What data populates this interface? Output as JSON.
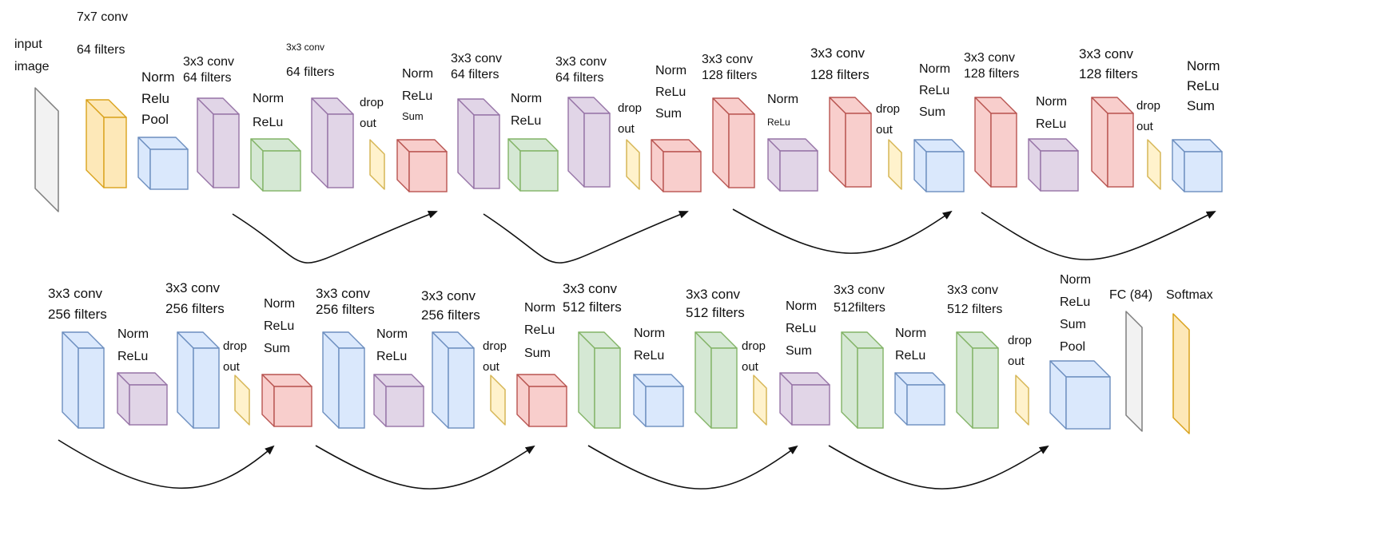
{
  "colors": {
    "gray": {
      "fill": "#f2f2f2",
      "stroke": "#7f7f7f"
    },
    "orange": {
      "fill": "#fde8b8",
      "stroke": "#d9a21c"
    },
    "blue": {
      "fill": "#dae8fc",
      "stroke": "#6c8ebf"
    },
    "purple": {
      "fill": "#e1d5e7",
      "stroke": "#9673a6"
    },
    "green": {
      "fill": "#d5e8d4",
      "stroke": "#82b366"
    },
    "yellow": {
      "fill": "#fff2cc",
      "stroke": "#d6b656"
    },
    "red": {
      "fill": "#f8cecc",
      "stroke": "#b85450"
    }
  },
  "blocks": [
    {
      "kind": "plate",
      "color": "gray"
    },
    {
      "kind": "box",
      "color": "orange"
    },
    {
      "kind": "box",
      "color": "blue"
    },
    {
      "kind": "box",
      "color": "purple"
    },
    {
      "kind": "box",
      "color": "green"
    },
    {
      "kind": "box",
      "color": "purple"
    },
    {
      "kind": "plate",
      "color": "yellow"
    },
    {
      "kind": "box",
      "color": "red"
    },
    {
      "kind": "box",
      "color": "purple"
    },
    {
      "kind": "box",
      "color": "green"
    },
    {
      "kind": "box",
      "color": "purple"
    },
    {
      "kind": "plate",
      "color": "yellow"
    },
    {
      "kind": "box",
      "color": "red"
    },
    {
      "kind": "box",
      "color": "red"
    },
    {
      "kind": "box",
      "color": "purple"
    },
    {
      "kind": "box",
      "color": "red"
    },
    {
      "kind": "plate",
      "color": "yellow"
    },
    {
      "kind": "box",
      "color": "blue"
    },
    {
      "kind": "box",
      "color": "red"
    },
    {
      "kind": "box",
      "color": "purple"
    },
    {
      "kind": "box",
      "color": "red"
    },
    {
      "kind": "plate",
      "color": "yellow"
    },
    {
      "kind": "box",
      "color": "blue"
    },
    {
      "kind": "box",
      "color": "blue"
    },
    {
      "kind": "box",
      "color": "purple"
    },
    {
      "kind": "box",
      "color": "blue"
    },
    {
      "kind": "plate",
      "color": "yellow"
    },
    {
      "kind": "box",
      "color": "red"
    },
    {
      "kind": "box",
      "color": "blue"
    },
    {
      "kind": "box",
      "color": "purple"
    },
    {
      "kind": "box",
      "color": "blue"
    },
    {
      "kind": "plate",
      "color": "yellow"
    },
    {
      "kind": "box",
      "color": "red"
    },
    {
      "kind": "box",
      "color": "green"
    },
    {
      "kind": "box",
      "color": "blue"
    },
    {
      "kind": "box",
      "color": "green"
    },
    {
      "kind": "plate",
      "color": "yellow"
    },
    {
      "kind": "box",
      "color": "purple"
    },
    {
      "kind": "box",
      "color": "green"
    },
    {
      "kind": "box",
      "color": "blue"
    },
    {
      "kind": "box",
      "color": "green"
    },
    {
      "kind": "plate",
      "color": "yellow"
    },
    {
      "kind": "box",
      "color": "blue"
    },
    {
      "kind": "plate",
      "color": "gray"
    },
    {
      "kind": "plate",
      "color": "orange"
    }
  ],
  "labels": [
    {
      "lines": [
        "input",
        "image"
      ]
    },
    {
      "lines": [
        "7x7 conv"
      ]
    },
    {
      "lines": [
        "64 filters"
      ]
    },
    {
      "lines": [
        "Norm",
        "Relu"
      ]
    },
    {
      "lines": [
        "Pool"
      ]
    },
    {
      "lines": [
        "3x3 conv",
        "64 filters"
      ]
    },
    {
      "lines": [
        "3x3 conv"
      ]
    },
    {
      "lines": [
        "64 filters"
      ]
    },
    {
      "lines": [
        "Norm",
        "ReLu"
      ]
    },
    {
      "lines": [
        "drop",
        "out"
      ]
    },
    {
      "lines": [
        "Norm",
        "ReLu"
      ]
    },
    {
      "lines": [
        "Sum"
      ]
    },
    {
      "lines": [
        "3x3 conv",
        "64 filters"
      ]
    },
    {
      "lines": [
        "Norm",
        "ReLu"
      ]
    },
    {
      "lines": [
        "3x3 conv",
        "64 filters"
      ]
    },
    {
      "lines": [
        "drop",
        "out"
      ]
    },
    {
      "lines": [
        "Norm",
        "ReLu",
        "Sum"
      ]
    },
    {
      "lines": [
        "3x3 conv",
        "128 filters"
      ]
    },
    {
      "lines": [
        "Norm"
      ]
    },
    {
      "lines": [
        "ReLu"
      ]
    },
    {
      "lines": [
        "3x3 conv",
        "128 filters"
      ]
    },
    {
      "lines": [
        "drop",
        "out"
      ]
    },
    {
      "lines": [
        "Norm",
        "ReLu",
        "Sum"
      ]
    },
    {
      "lines": [
        "3x3 conv",
        "128 filters"
      ]
    },
    {
      "lines": [
        "Norm",
        "ReLu"
      ]
    },
    {
      "lines": [
        "3x3 conv",
        "128 filters"
      ]
    },
    {
      "lines": [
        "drop",
        "out"
      ]
    },
    {
      "lines": [
        "Norm",
        "ReLu",
        "Sum"
      ]
    },
    {
      "lines": [
        "3x3 conv",
        "256 filters"
      ]
    },
    {
      "lines": [
        "Norm",
        "ReLu"
      ]
    },
    {
      "lines": [
        "3x3 conv",
        "256 filters"
      ]
    },
    {
      "lines": [
        "drop",
        "out"
      ]
    },
    {
      "lines": [
        "Norm",
        "ReLu",
        "Sum"
      ]
    },
    {
      "lines": [
        "3x3 conv",
        "256 filters"
      ]
    },
    {
      "lines": [
        "Norm",
        "ReLu"
      ]
    },
    {
      "lines": [
        "3x3 conv",
        "256 filters"
      ]
    },
    {
      "lines": [
        "drop",
        "out"
      ]
    },
    {
      "lines": [
        "Norm"
      ]
    },
    {
      "lines": [
        "ReLu",
        "Sum"
      ]
    },
    {
      "lines": [
        "3x3 conv",
        "512 filters"
      ]
    },
    {
      "lines": [
        "Norm",
        "ReLu"
      ]
    },
    {
      "lines": [
        "3x3 conv",
        "512 filters"
      ]
    },
    {
      "lines": [
        "drop",
        "out"
      ]
    },
    {
      "lines": [
        "Norm",
        "ReLu",
        "Sum"
      ]
    },
    {
      "lines": [
        "3x3 conv",
        "512filters"
      ]
    },
    {
      "lines": [
        "Norm",
        "ReLu"
      ]
    },
    {
      "lines": [
        "3x3 conv",
        "512 filters"
      ]
    },
    {
      "lines": [
        "drop",
        "out"
      ]
    },
    {
      "lines": [
        "Norm",
        "ReLu",
        "Sum",
        "Pool"
      ]
    },
    {
      "lines": [
        "FC (84)"
      ]
    },
    {
      "lines": [
        "Softmax"
      ]
    }
  ],
  "skip_connections": 8
}
